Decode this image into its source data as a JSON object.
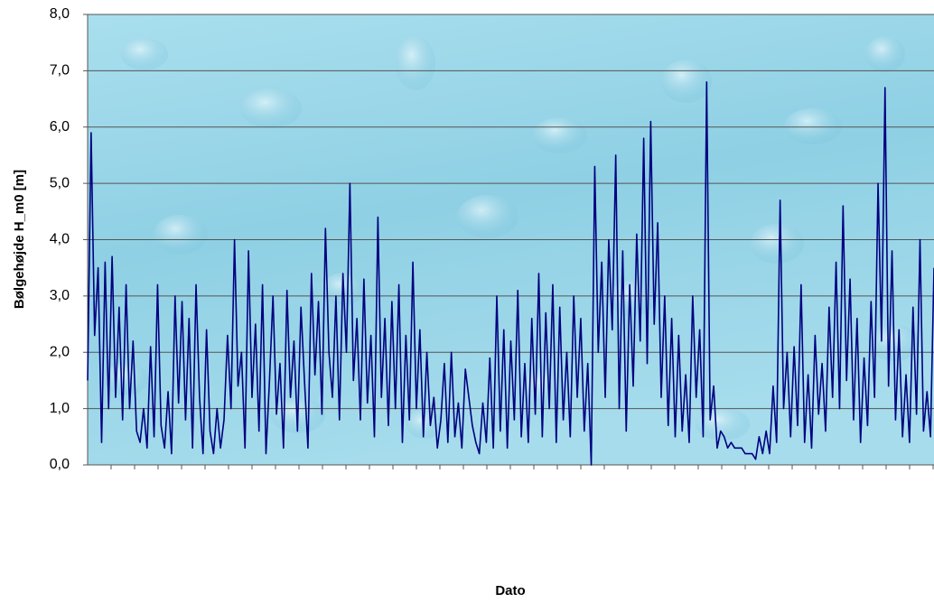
{
  "chart_data": {
    "type": "line",
    "ylabel": "Bølgehøjde H_m0 [m]",
    "xlabel": "Dato",
    "color": "#000080",
    "grid": true,
    "ylim": [
      0,
      8
    ],
    "yticks": [
      {
        "value": 0,
        "label": "0,0"
      },
      {
        "value": 1,
        "label": "1,0"
      },
      {
        "value": 2,
        "label": "2,0"
      },
      {
        "value": 3,
        "label": "3,0"
      },
      {
        "value": 4,
        "label": "4,0"
      },
      {
        "value": 5,
        "label": "5,0"
      },
      {
        "value": 6,
        "label": "6,0"
      },
      {
        "value": 7,
        "label": "7,0"
      },
      {
        "value": 8,
        "label": "8,0"
      }
    ],
    "values": [
      1.5,
      5.9,
      2.3,
      3.5,
      0.4,
      3.6,
      1.0,
      3.7,
      1.2,
      2.8,
      0.8,
      3.2,
      1.0,
      2.2,
      0.6,
      0.4,
      1.0,
      0.3,
      2.1,
      0.5,
      3.2,
      0.7,
      0.3,
      1.3,
      0.2,
      3.0,
      1.1,
      2.9,
      0.8,
      2.6,
      0.3,
      3.2,
      1.2,
      0.2,
      2.4,
      0.6,
      0.2,
      1.0,
      0.3,
      0.8,
      2.3,
      1.0,
      4.0,
      1.4,
      2.0,
      0.3,
      3.8,
      1.2,
      2.5,
      0.6,
      3.2,
      0.2,
      1.5,
      3.0,
      0.9,
      1.8,
      0.3,
      3.1,
      1.2,
      2.2,
      0.6,
      2.8,
      1.5,
      0.3,
      3.4,
      1.6,
      2.9,
      0.9,
      4.2,
      2.0,
      1.2,
      3.0,
      0.8,
      3.4,
      2.0,
      5.0,
      1.5,
      2.6,
      0.8,
      3.3,
      1.1,
      2.3,
      0.5,
      4.4,
      1.2,
      2.6,
      0.7,
      2.9,
      1.0,
      3.2,
      0.4,
      2.3,
      0.8,
      3.6,
      1.0,
      2.4,
      0.5,
      2.0,
      0.7,
      1.2,
      0.3,
      0.8,
      1.8,
      0.4,
      2.0,
      0.5,
      1.1,
      0.3,
      1.7,
      1.2,
      0.7,
      0.4,
      0.2,
      1.1,
      0.4,
      1.9,
      0.3,
      3.0,
      0.6,
      2.4,
      0.3,
      2.2,
      0.8,
      3.1,
      0.5,
      1.8,
      0.4,
      2.6,
      0.9,
      3.4,
      0.5,
      2.7,
      1.0,
      3.2,
      0.4,
      2.8,
      0.8,
      2.0,
      0.5,
      3.0,
      1.2,
      2.6,
      0.6,
      1.8,
      0.0,
      5.3,
      2.0,
      3.6,
      1.2,
      4.0,
      2.4,
      5.5,
      1.0,
      3.8,
      0.6,
      3.2,
      1.4,
      4.1,
      2.2,
      5.8,
      1.8,
      6.1,
      2.5,
      4.3,
      1.2,
      3.0,
      0.7,
      2.6,
      0.5,
      2.3,
      0.6,
      1.6,
      0.4,
      3.0,
      1.2,
      2.4,
      0.5,
      6.8,
      0.8,
      1.4,
      0.3,
      0.6,
      0.5,
      0.3,
      0.4,
      0.3,
      0.3,
      0.3,
      0.2,
      0.2,
      0.2,
      0.1,
      0.5,
      0.2,
      0.6,
      0.2,
      1.4,
      0.4,
      4.7,
      1.0,
      2.0,
      0.5,
      2.1,
      0.7,
      3.2,
      0.4,
      1.6,
      0.3,
      2.3,
      0.9,
      1.8,
      0.6,
      2.8,
      1.2,
      3.6,
      1.0,
      4.6,
      1.5,
      3.3,
      0.8,
      2.6,
      0.4,
      1.9,
      0.7,
      2.9,
      1.2,
      5.0,
      2.2,
      6.7,
      1.4,
      3.8,
      0.8,
      2.4,
      0.5,
      1.6,
      0.4,
      2.8,
      0.9,
      4.0,
      0.6,
      1.3,
      0.5,
      3.5
    ]
  }
}
